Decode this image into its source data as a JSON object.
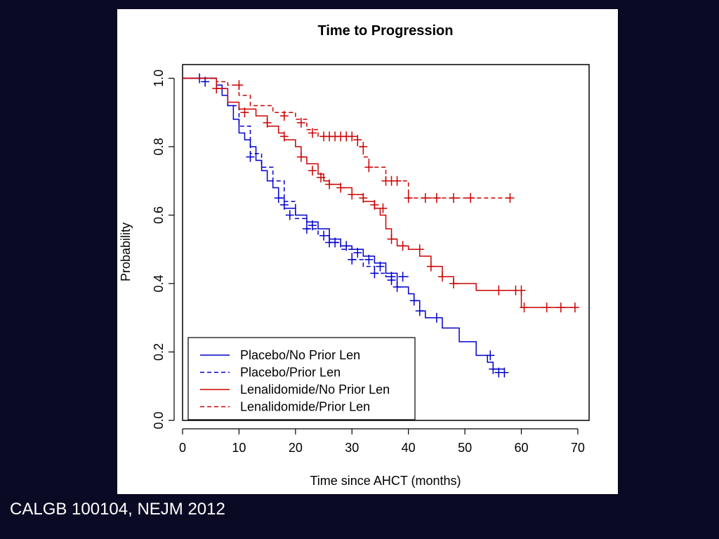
{
  "slide": {
    "background": "#0b0a24",
    "citation": "CALGB 100104, NEJM 2012"
  },
  "chart_data": {
    "type": "line",
    "step": true,
    "title": "Time to Progression",
    "xlabel": "Time since AHCT (months)",
    "ylabel": "Probability",
    "xlim": [
      0,
      72
    ],
    "ylim": [
      0,
      1.04
    ],
    "xticks": [
      "0",
      "10",
      "20",
      "30",
      "40",
      "50",
      "60",
      "70"
    ],
    "yticks": [
      "0.0",
      "0.2",
      "0.4",
      "0.6",
      "0.8",
      "1.0"
    ],
    "grid": false,
    "legend_position": "bottom-left",
    "series": [
      {
        "name": "Placebo/No Prior Len",
        "color": "#0000cc",
        "dash": "solid",
        "points": [
          [
            0,
            1.0
          ],
          [
            6,
            0.98
          ],
          [
            7,
            0.95
          ],
          [
            8,
            0.92
          ],
          [
            9,
            0.88
          ],
          [
            10,
            0.84
          ],
          [
            11,
            0.82
          ],
          [
            12,
            0.8
          ],
          [
            13,
            0.76
          ],
          [
            14,
            0.73
          ],
          [
            15,
            0.7
          ],
          [
            16,
            0.68
          ],
          [
            17,
            0.65
          ],
          [
            18,
            0.62
          ],
          [
            20,
            0.6
          ],
          [
            22,
            0.58
          ],
          [
            24,
            0.56
          ],
          [
            26,
            0.53
          ],
          [
            28,
            0.51
          ],
          [
            30,
            0.5
          ],
          [
            32,
            0.48
          ],
          [
            34,
            0.46
          ],
          [
            36,
            0.43
          ],
          [
            38,
            0.39
          ],
          [
            40,
            0.37
          ],
          [
            41,
            0.35
          ],
          [
            42,
            0.32
          ],
          [
            43,
            0.3
          ],
          [
            46,
            0.27
          ],
          [
            49,
            0.23
          ],
          [
            52,
            0.19
          ],
          [
            54,
            0.17
          ],
          [
            55,
            0.15
          ],
          [
            57,
            0.15
          ]
        ],
        "censors": [
          [
            3,
            1.0
          ],
          [
            12,
            0.77
          ],
          [
            18,
            0.63
          ],
          [
            23,
            0.57
          ],
          [
            25,
            0.54
          ],
          [
            27,
            0.52
          ],
          [
            29,
            0.51
          ],
          [
            31,
            0.49
          ],
          [
            33,
            0.47
          ],
          [
            35,
            0.45
          ],
          [
            37,
            0.41
          ],
          [
            38,
            0.39
          ],
          [
            41,
            0.35
          ],
          [
            42,
            0.32
          ],
          [
            45,
            0.3
          ],
          [
            54.5,
            0.19
          ],
          [
            55,
            0.15
          ],
          [
            56,
            0.14
          ],
          [
            57,
            0.14
          ]
        ]
      },
      {
        "name": "Placebo/Prior Len",
        "color": "#0000cc",
        "dash": "dashed",
        "points": [
          [
            0,
            1.0
          ],
          [
            6,
            0.97
          ],
          [
            8,
            0.92
          ],
          [
            10,
            0.86
          ],
          [
            12,
            0.78
          ],
          [
            14,
            0.74
          ],
          [
            16,
            0.7
          ],
          [
            18,
            0.64
          ],
          [
            20,
            0.59
          ],
          [
            22,
            0.56
          ],
          [
            24,
            0.54
          ],
          [
            26,
            0.52
          ],
          [
            28,
            0.5
          ],
          [
            30,
            0.47
          ],
          [
            32,
            0.45
          ],
          [
            34,
            0.43
          ],
          [
            36,
            0.42
          ],
          [
            40,
            0.42
          ]
        ],
        "censors": [
          [
            4,
            0.99
          ],
          [
            17,
            0.65
          ],
          [
            19,
            0.6
          ],
          [
            22,
            0.56
          ],
          [
            26,
            0.52
          ],
          [
            30,
            0.47
          ],
          [
            34,
            0.43
          ],
          [
            37,
            0.42
          ],
          [
            39,
            0.42
          ]
        ]
      },
      {
        "name": "Lenalidomide/No Prior Len",
        "color": "#cc0000",
        "dash": "solid",
        "points": [
          [
            0,
            1.0
          ],
          [
            6,
            0.97
          ],
          [
            8,
            0.93
          ],
          [
            10,
            0.91
          ],
          [
            13,
            0.89
          ],
          [
            15,
            0.86
          ],
          [
            17,
            0.84
          ],
          [
            18,
            0.82
          ],
          [
            20,
            0.8
          ],
          [
            21,
            0.77
          ],
          [
            22,
            0.75
          ],
          [
            24,
            0.72
          ],
          [
            25,
            0.7
          ],
          [
            26,
            0.69
          ],
          [
            28,
            0.68
          ],
          [
            30,
            0.66
          ],
          [
            32,
            0.64
          ],
          [
            34,
            0.62
          ],
          [
            35,
            0.6
          ],
          [
            36,
            0.56
          ],
          [
            37,
            0.53
          ],
          [
            38,
            0.51
          ],
          [
            40,
            0.5
          ],
          [
            42,
            0.48
          ],
          [
            44,
            0.45
          ],
          [
            46,
            0.42
          ],
          [
            48,
            0.4
          ],
          [
            52,
            0.38
          ],
          [
            55,
            0.38
          ],
          [
            60,
            0.33
          ],
          [
            69,
            0.33
          ]
        ],
        "censors": [
          [
            6,
            0.97
          ],
          [
            11,
            0.9
          ],
          [
            15,
            0.87
          ],
          [
            18,
            0.83
          ],
          [
            21,
            0.77
          ],
          [
            23,
            0.73
          ],
          [
            24.5,
            0.71
          ],
          [
            26,
            0.69
          ],
          [
            28,
            0.68
          ],
          [
            30,
            0.66
          ],
          [
            32,
            0.65
          ],
          [
            34,
            0.63
          ],
          [
            35.5,
            0.62
          ],
          [
            37,
            0.53
          ],
          [
            39,
            0.51
          ],
          [
            42,
            0.5
          ],
          [
            44,
            0.45
          ],
          [
            46,
            0.42
          ],
          [
            48,
            0.4
          ],
          [
            56,
            0.38
          ],
          [
            59,
            0.38
          ],
          [
            60,
            0.38
          ],
          [
            60.5,
            0.33
          ],
          [
            64.5,
            0.33
          ],
          [
            67,
            0.33
          ],
          [
            69.5,
            0.33
          ]
        ]
      },
      {
        "name": "Lenalidomide/Prior Len",
        "color": "#cc0000",
        "dash": "dashed",
        "points": [
          [
            0,
            1.0
          ],
          [
            6,
            0.99
          ],
          [
            8,
            0.98
          ],
          [
            10,
            0.95
          ],
          [
            12,
            0.92
          ],
          [
            16,
            0.9
          ],
          [
            20,
            0.88
          ],
          [
            22,
            0.85
          ],
          [
            24,
            0.83
          ],
          [
            30,
            0.83
          ],
          [
            31,
            0.8
          ],
          [
            32,
            0.77
          ],
          [
            33,
            0.74
          ],
          [
            36,
            0.7
          ],
          [
            39,
            0.7
          ],
          [
            40,
            0.65
          ],
          [
            58,
            0.65
          ]
        ],
        "censors": [
          [
            10,
            0.98
          ],
          [
            18,
            0.89
          ],
          [
            21,
            0.87
          ],
          [
            23,
            0.84
          ],
          [
            25,
            0.83
          ],
          [
            26,
            0.83
          ],
          [
            27,
            0.83
          ],
          [
            28,
            0.83
          ],
          [
            29,
            0.83
          ],
          [
            30,
            0.83
          ],
          [
            31,
            0.82
          ],
          [
            32,
            0.8
          ],
          [
            33,
            0.74
          ],
          [
            36,
            0.7
          ],
          [
            37,
            0.7
          ],
          [
            38,
            0.7
          ],
          [
            40,
            0.65
          ],
          [
            43,
            0.65
          ],
          [
            45,
            0.65
          ],
          [
            48,
            0.65
          ],
          [
            51,
            0.65
          ],
          [
            58,
            0.65
          ]
        ]
      }
    ]
  }
}
